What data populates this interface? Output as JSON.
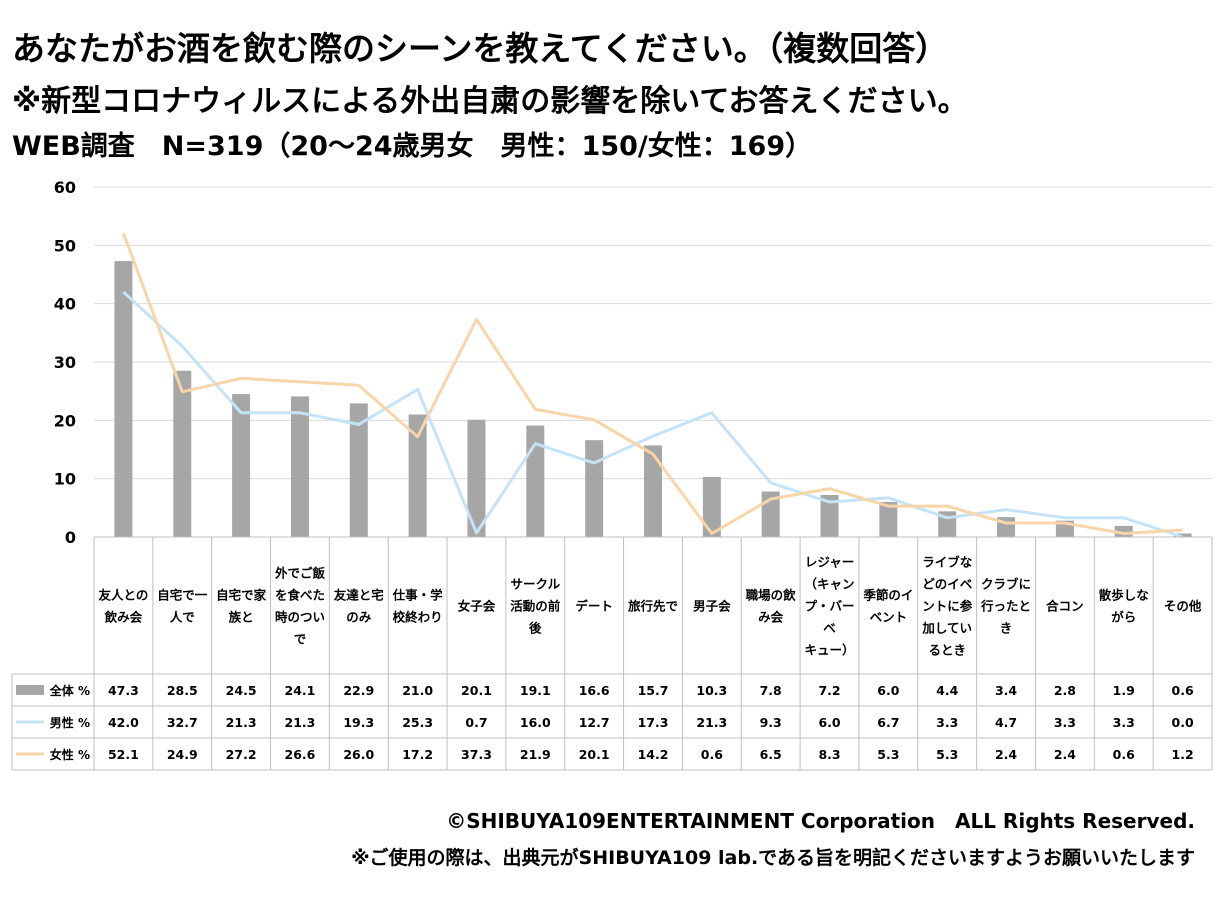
{
  "header": {
    "title_line1": "あなたがお酒を飲む際のシーンを教えてください。（複数回答）",
    "title_line2": "※新型コロナウィルスによる外出自粛の影響を除いてお答えください。",
    "title_line3": "WEB調査　N=319（20～24歳男女　男性：150/女性：169）"
  },
  "footer": {
    "copyright": "©SHIBUYA109ENTERTAINMENT Corporation　ALL Rights Reserved.",
    "note": "※ご使用の際は、出典元がSHIBUYA109 lab.である旨を明記くださいますようお願いいたします"
  },
  "colors": {
    "bar": "#a6a6a6",
    "male": "#c5e3f6",
    "female": "#f8d5a9",
    "grid": "#d9d9d9",
    "table_border": "#bfbfbf"
  },
  "chart_data": {
    "type": "bar",
    "ylim": [
      0,
      60
    ],
    "yticks": [
      0,
      10,
      20,
      30,
      40,
      50,
      60
    ],
    "grid": true,
    "legend": "data-table",
    "categories": [
      [
        "友人との",
        "飲み会"
      ],
      [
        "自宅で一",
        "人で"
      ],
      [
        "自宅で家",
        "族と"
      ],
      [
        "外でご飯",
        "を食べた",
        "時のつい",
        "で"
      ],
      [
        "友達と宅",
        "のみ"
      ],
      [
        "仕事・学",
        "校終わり"
      ],
      [
        "女子会"
      ],
      [
        "サークル",
        "活動の前",
        "後"
      ],
      [
        "デート"
      ],
      [
        "旅行先で"
      ],
      [
        "男子会"
      ],
      [
        "職場の飲",
        "み会"
      ],
      [
        "レジャー",
        "（キャン",
        "プ・バー",
        "ベ",
        "キュー）"
      ],
      [
        "季節のイ",
        "ベント"
      ],
      [
        "ライブな",
        "どのイベ",
        "ントに参",
        "加してい",
        "るとき"
      ],
      [
        "クラブに",
        "行ったと",
        "き"
      ],
      [
        "合コン"
      ],
      [
        "散歩しな",
        "がら"
      ],
      [
        "その他"
      ]
    ],
    "series": [
      {
        "name": "全体 %",
        "kind": "bar",
        "values": [
          47.3,
          28.5,
          24.5,
          24.1,
          22.9,
          21.0,
          20.1,
          19.1,
          16.6,
          15.7,
          10.3,
          7.8,
          7.2,
          6.0,
          4.4,
          3.4,
          2.8,
          1.9,
          0.6
        ]
      },
      {
        "name": "男性 %",
        "kind": "line",
        "values": [
          42.0,
          32.7,
          21.3,
          21.3,
          19.3,
          25.3,
          0.7,
          16.0,
          12.7,
          17.3,
          21.3,
          9.3,
          6.0,
          6.7,
          3.3,
          4.7,
          3.3,
          3.3,
          0.0
        ]
      },
      {
        "name": "女性 %",
        "kind": "line",
        "values": [
          52.1,
          24.9,
          27.2,
          26.6,
          26.0,
          17.2,
          37.3,
          21.9,
          20.1,
          14.2,
          0.6,
          6.5,
          8.3,
          5.3,
          5.3,
          2.4,
          2.4,
          0.6,
          1.2
        ]
      }
    ]
  }
}
